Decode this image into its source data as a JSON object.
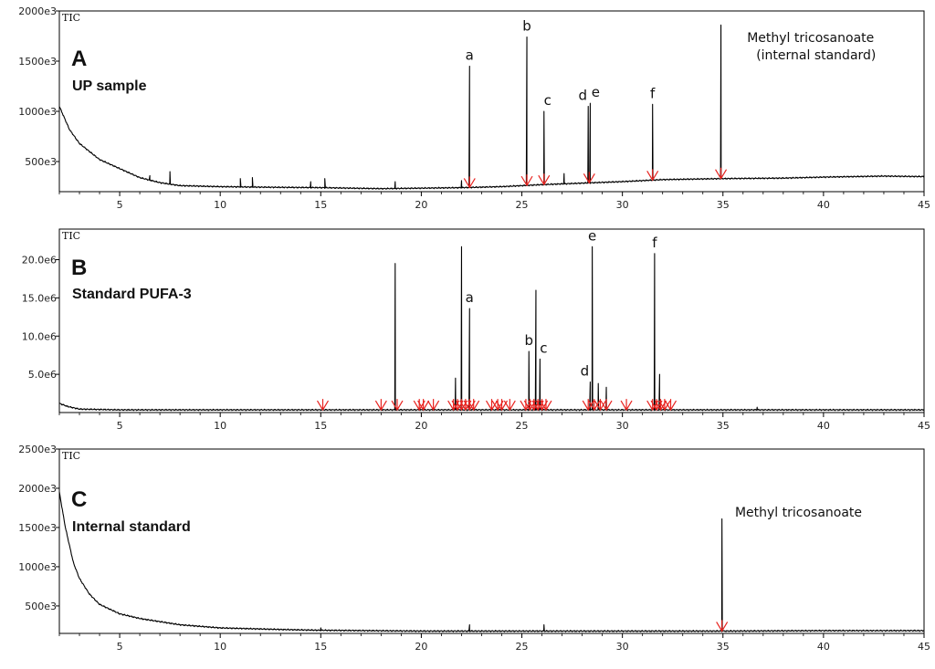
{
  "chart_data": [
    {
      "type": "line",
      "panel_letter": "A",
      "panel_label": "UP sample",
      "trace_label": "TIC",
      "xlim": [
        2,
        45
      ],
      "ylim": [
        200000,
        2000000
      ],
      "x_ticks": [
        5,
        10,
        15,
        20,
        25,
        30,
        35,
        40,
        45
      ],
      "y_ticks": [
        {
          "value": 500000,
          "label": "500e3"
        },
        {
          "value": 1000000,
          "label": "1000e3"
        },
        {
          "value": 1500000,
          "label": "1500e3"
        },
        {
          "value": 2000000,
          "label": "2000e3"
        }
      ],
      "baseline": [
        [
          2,
          1050000
        ],
        [
          2.5,
          820000
        ],
        [
          3,
          680000
        ],
        [
          4,
          520000
        ],
        [
          5,
          430000
        ],
        [
          6,
          340000
        ],
        [
          7,
          290000
        ],
        [
          8,
          260000
        ],
        [
          10,
          250000
        ],
        [
          12,
          245000
        ],
        [
          15,
          240000
        ],
        [
          18,
          230000
        ],
        [
          20,
          235000
        ],
        [
          22,
          240000
        ],
        [
          24,
          250000
        ],
        [
          26,
          270000
        ],
        [
          28,
          285000
        ],
        [
          30,
          300000
        ],
        [
          32,
          320000
        ],
        [
          35,
          330000
        ],
        [
          38,
          335000
        ],
        [
          40,
          345000
        ],
        [
          43,
          355000
        ],
        [
          45,
          350000
        ]
      ],
      "peaks": [
        {
          "x": 6.5,
          "y": 360000,
          "label": ""
        },
        {
          "x": 7.5,
          "y": 400000,
          "label": ""
        },
        {
          "x": 11.0,
          "y": 330000,
          "label": ""
        },
        {
          "x": 11.6,
          "y": 340000,
          "label": ""
        },
        {
          "x": 14.5,
          "y": 300000,
          "label": ""
        },
        {
          "x": 15.2,
          "y": 330000,
          "label": ""
        },
        {
          "x": 18.7,
          "y": 300000,
          "label": ""
        },
        {
          "x": 22.0,
          "y": 310000,
          "label": ""
        },
        {
          "x": 22.4,
          "y": 1450000,
          "label": "a"
        },
        {
          "x": 25.25,
          "y": 1740000,
          "label": "b"
        },
        {
          "x": 26.1,
          "y": 1000000,
          "label": "c"
        },
        {
          "x": 27.1,
          "y": 380000,
          "label": ""
        },
        {
          "x": 28.3,
          "y": 1050000,
          "label": "d"
        },
        {
          "x": 28.4,
          "y": 1080000,
          "label": "e"
        },
        {
          "x": 31.5,
          "y": 1070000,
          "label": "f"
        },
        {
          "x": 34.9,
          "y": 1860000,
          "label": ""
        }
      ],
      "integration_marks": [
        22.4,
        25.25,
        26.1,
        28.35,
        31.5,
        34.9
      ],
      "annotation": {
        "line1": "Methyl tricosanoate",
        "line2": "(internal standard)",
        "x": 36.2
      }
    },
    {
      "type": "line",
      "panel_letter": "B",
      "panel_label": "Standard PUFA-3",
      "trace_label": "TIC",
      "xlim": [
        2,
        45
      ],
      "ylim": [
        0,
        24000000
      ],
      "x_ticks": [
        5,
        10,
        15,
        20,
        25,
        30,
        35,
        40,
        45
      ],
      "y_ticks": [
        {
          "value": 5000000,
          "label": "5.0e6"
        },
        {
          "value": 10000000,
          "label": "10.0e6"
        },
        {
          "value": 15000000,
          "label": "15.0e6"
        },
        {
          "value": 20000000,
          "label": "20.0e6"
        }
      ],
      "baseline": [
        [
          2,
          1200000
        ],
        [
          2.4,
          800000
        ],
        [
          3,
          450000
        ],
        [
          5,
          350000
        ],
        [
          45,
          350000
        ]
      ],
      "peaks": [
        {
          "x": 18.7,
          "y": 19500000,
          "label": ""
        },
        {
          "x": 21.7,
          "y": 4500000,
          "label": ""
        },
        {
          "x": 22.0,
          "y": 21700000,
          "label": ""
        },
        {
          "x": 22.4,
          "y": 13600000,
          "label": "a"
        },
        {
          "x": 25.35,
          "y": 8000000,
          "label": "b"
        },
        {
          "x": 25.7,
          "y": 16000000,
          "label": ""
        },
        {
          "x": 25.9,
          "y": 7000000,
          "label": "c"
        },
        {
          "x": 28.4,
          "y": 4000000,
          "label": "d"
        },
        {
          "x": 28.5,
          "y": 21700000,
          "label": "e"
        },
        {
          "x": 28.8,
          "y": 3800000,
          "label": ""
        },
        {
          "x": 29.2,
          "y": 3300000,
          "label": ""
        },
        {
          "x": 31.6,
          "y": 20800000,
          "label": "f"
        },
        {
          "x": 31.85,
          "y": 5000000,
          "label": ""
        },
        {
          "x": 36.7,
          "y": 700000,
          "label": ""
        }
      ],
      "integration_marks": [
        15.1,
        18.0,
        18.8,
        19.9,
        20.1,
        20.6,
        21.6,
        21.8,
        22.0,
        22.2,
        22.4,
        22.6,
        23.5,
        23.8,
        24.0,
        24.4,
        25.2,
        25.4,
        25.6,
        25.8,
        26.0,
        26.2,
        28.3,
        28.6,
        28.9,
        29.2,
        30.2,
        31.5,
        31.7,
        31.9,
        32.1,
        32.4
      ],
      "annotation": null
    },
    {
      "type": "line",
      "panel_letter": "C",
      "panel_label": "Internal standard",
      "trace_label": "TIC",
      "xlim": [
        2,
        45
      ],
      "ylim": [
        150000,
        2500000
      ],
      "x_ticks": [
        5,
        10,
        15,
        20,
        25,
        30,
        35,
        40,
        45
      ],
      "y_ticks": [
        {
          "value": 500000,
          "label": "500e3"
        },
        {
          "value": 1000000,
          "label": "1000e3"
        },
        {
          "value": 1500000,
          "label": "1500e3"
        },
        {
          "value": 2000000,
          "label": "2000e3"
        },
        {
          "value": 2500000,
          "label": "2500e3"
        }
      ],
      "baseline": [
        [
          2,
          1950000
        ],
        [
          2.3,
          1500000
        ],
        [
          2.7,
          1050000
        ],
        [
          3,
          850000
        ],
        [
          3.5,
          650000
        ],
        [
          4,
          520000
        ],
        [
          5,
          400000
        ],
        [
          6,
          340000
        ],
        [
          8,
          260000
        ],
        [
          10,
          220000
        ],
        [
          13,
          200000
        ],
        [
          15,
          190000
        ],
        [
          20,
          180000
        ],
        [
          25,
          180000
        ],
        [
          30,
          180000
        ],
        [
          35,
          180000
        ],
        [
          40,
          185000
        ],
        [
          45,
          185000
        ]
      ],
      "peaks": [
        {
          "x": 15.0,
          "y": 220000,
          "label": ""
        },
        {
          "x": 22.4,
          "y": 260000,
          "label": ""
        },
        {
          "x": 26.1,
          "y": 260000,
          "label": ""
        },
        {
          "x": 34.95,
          "y": 1610000,
          "label": ""
        }
      ],
      "integration_marks": [
        34.95
      ],
      "annotation": {
        "line1": "Methyl tricosanoate",
        "line2": "",
        "x": 35.6
      }
    }
  ],
  "colors": {
    "trace": "#000000",
    "marker": "#e8231f",
    "frame": "#000000"
  }
}
